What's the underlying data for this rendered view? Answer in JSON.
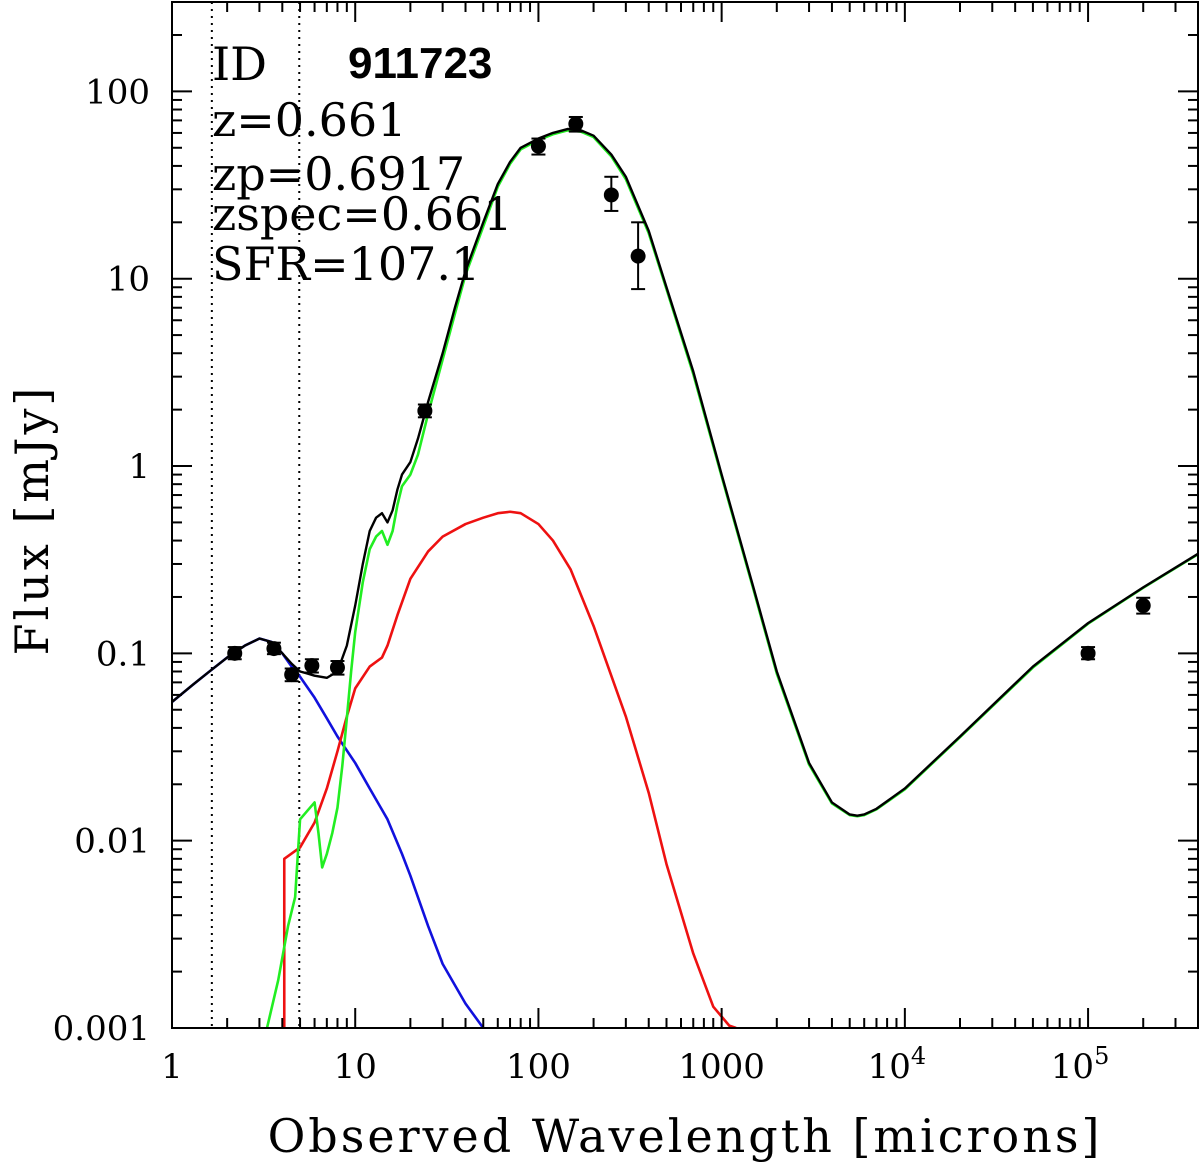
{
  "chart_data": {
    "type": "line",
    "xscale": "log",
    "yscale": "log",
    "xlabel": "Observed Wavelength [microns]",
    "ylabel": "Flux [mJy]",
    "xlim": [
      1,
      398107
    ],
    "ylim": [
      0.001,
      300
    ],
    "x_ticks": [
      {
        "value": 1,
        "label": "1",
        "sup": ""
      },
      {
        "value": 10,
        "label": "10",
        "sup": ""
      },
      {
        "value": 100,
        "label": "100",
        "sup": ""
      },
      {
        "value": 1000,
        "label": "1000",
        "sup": ""
      },
      {
        "value": 10000,
        "label": "10",
        "sup": "4"
      },
      {
        "value": 100000,
        "label": "10",
        "sup": "5"
      }
    ],
    "y_ticks": [
      {
        "value": 0.001,
        "label": "0.001"
      },
      {
        "value": 0.01,
        "label": "0.01"
      },
      {
        "value": 0.1,
        "label": "0.1"
      },
      {
        "value": 1,
        "label": "1"
      },
      {
        "value": 10,
        "label": "10"
      },
      {
        "value": 100,
        "label": "100"
      }
    ],
    "annotations": {
      "id_label": "ID",
      "id_value": "911723",
      "z": "z=0.661",
      "zp": "zp=0.6917",
      "zspec": "zspec=0.661",
      "sfr": "SFR=107.1"
    },
    "vlines": [
      1.65,
      4.95
    ],
    "series": [
      {
        "name": "total",
        "color": "#000000",
        "x": [
          1,
          1.3,
          1.6,
          2.0,
          2.5,
          3.0,
          3.5,
          4.0,
          4.5,
          5.0,
          5.5,
          6.0,
          7.0,
          8.0,
          9.0,
          10,
          11,
          12,
          13,
          14,
          15,
          16,
          17,
          18,
          20,
          22,
          25,
          30,
          35,
          40,
          50,
          60,
          70,
          80,
          100,
          120,
          145,
          170,
          200,
          250,
          300,
          400,
          500,
          700,
          1000,
          1500,
          2000,
          3000,
          4000,
          5000,
          5500,
          6000,
          7000,
          10000,
          20000,
          50000,
          100000,
          200000,
          398107
        ],
        "y": [
          0.055,
          0.068,
          0.08,
          0.095,
          0.11,
          0.12,
          0.115,
          0.1,
          0.088,
          0.08,
          0.078,
          0.076,
          0.074,
          0.08,
          0.11,
          0.18,
          0.3,
          0.45,
          0.53,
          0.56,
          0.5,
          0.58,
          0.75,
          0.9,
          1.05,
          1.4,
          2.2,
          4.0,
          7.0,
          11,
          20,
          32,
          42,
          50,
          56,
          60,
          63,
          62,
          58,
          46,
          35,
          18,
          9,
          3.2,
          0.9,
          0.22,
          0.08,
          0.026,
          0.016,
          0.0138,
          0.0136,
          0.0138,
          0.0148,
          0.019,
          0.036,
          0.085,
          0.145,
          0.225,
          0.34
        ]
      },
      {
        "name": "green",
        "color": "#22ee22",
        "x": [
          3.3,
          3.8,
          4.3,
          4.7,
          5.0,
          5.5,
          6.0,
          6.3,
          6.6,
          7.0,
          7.5,
          8.0,
          8.5,
          9.0,
          9.5,
          10,
          11,
          12,
          13,
          14,
          15,
          16,
          17,
          18,
          20,
          22,
          25,
          30,
          35,
          40,
          50,
          60,
          70,
          80,
          100,
          120,
          145,
          170,
          200,
          250,
          300,
          400,
          500,
          700,
          1000,
          1500,
          2000,
          3000,
          4000,
          5000,
          5500,
          6000,
          7000,
          10000,
          20000,
          50000,
          100000,
          200000,
          398107
        ],
        "y": [
          0.001,
          0.0018,
          0.0035,
          0.005,
          0.013,
          0.0145,
          0.016,
          0.011,
          0.0072,
          0.0085,
          0.011,
          0.015,
          0.025,
          0.045,
          0.08,
          0.13,
          0.24,
          0.36,
          0.42,
          0.45,
          0.38,
          0.45,
          0.62,
          0.78,
          0.9,
          1.15,
          1.9,
          3.7,
          6.5,
          10.5,
          19,
          31,
          41,
          49,
          55,
          59,
          62,
          61,
          57,
          45,
          34,
          17.5,
          8.8,
          3.1,
          0.88,
          0.215,
          0.078,
          0.0255,
          0.0158,
          0.0137,
          0.0135,
          0.0137,
          0.0147,
          0.0188,
          0.0357,
          0.084,
          0.144,
          0.224,
          0.338
        ]
      },
      {
        "name": "red",
        "color": "#ee1111",
        "x": [
          4.1,
          4.1,
          5.0,
          6.0,
          7.0,
          8.0,
          9.0,
          10,
          12,
          14,
          15,
          17,
          20,
          25,
          30,
          40,
          50,
          60,
          70,
          80,
          100,
          120,
          150,
          200,
          300,
          400,
          500,
          700,
          900,
          1100,
          1200
        ],
        "y": [
          0.001,
          0.008,
          0.0092,
          0.0125,
          0.019,
          0.03,
          0.046,
          0.065,
          0.085,
          0.095,
          0.11,
          0.16,
          0.25,
          0.35,
          0.42,
          0.49,
          0.53,
          0.56,
          0.57,
          0.56,
          0.49,
          0.4,
          0.28,
          0.14,
          0.046,
          0.018,
          0.0075,
          0.0025,
          0.0013,
          0.00103,
          0.001
        ]
      },
      {
        "name": "blue",
        "color": "#1111dd",
        "x": [
          1,
          1.3,
          1.6,
          2.0,
          2.5,
          3.0,
          3.5,
          4.0,
          4.5,
          5.0,
          6.0,
          7.0,
          8.0,
          10,
          12,
          15,
          18,
          20,
          25,
          30,
          40,
          50
        ],
        "y": [
          0.055,
          0.068,
          0.08,
          0.095,
          0.11,
          0.12,
          0.115,
          0.1,
          0.085,
          0.075,
          0.058,
          0.045,
          0.036,
          0.026,
          0.019,
          0.013,
          0.0085,
          0.0065,
          0.0035,
          0.0022,
          0.00135,
          0.001
        ]
      }
    ],
    "points": [
      {
        "x": 2.2,
        "y": 0.1,
        "ylo": 0.093,
        "yhi": 0.108
      },
      {
        "x": 3.6,
        "y": 0.106,
        "ylo": 0.099,
        "yhi": 0.114
      },
      {
        "x": 4.5,
        "y": 0.077,
        "ylo": 0.071,
        "yhi": 0.083
      },
      {
        "x": 5.8,
        "y": 0.086,
        "ylo": 0.079,
        "yhi": 0.093
      },
      {
        "x": 8.0,
        "y": 0.084,
        "ylo": 0.077,
        "yhi": 0.091
      },
      {
        "x": 24,
        "y": 1.97,
        "ylo": 1.82,
        "yhi": 2.13
      },
      {
        "x": 100,
        "y": 51,
        "ylo": 46,
        "yhi": 56
      },
      {
        "x": 160,
        "y": 67,
        "ylo": 61,
        "yhi": 73
      },
      {
        "x": 250,
        "y": 28,
        "ylo": 23,
        "yhi": 35
      },
      {
        "x": 350,
        "y": 13.2,
        "ylo": 8.8,
        "yhi": 20
      },
      {
        "x": 100000,
        "y": 0.1,
        "ylo": 0.093,
        "yhi": 0.108
      },
      {
        "x": 200000,
        "y": 0.18,
        "ylo": 0.163,
        "yhi": 0.198
      }
    ]
  }
}
